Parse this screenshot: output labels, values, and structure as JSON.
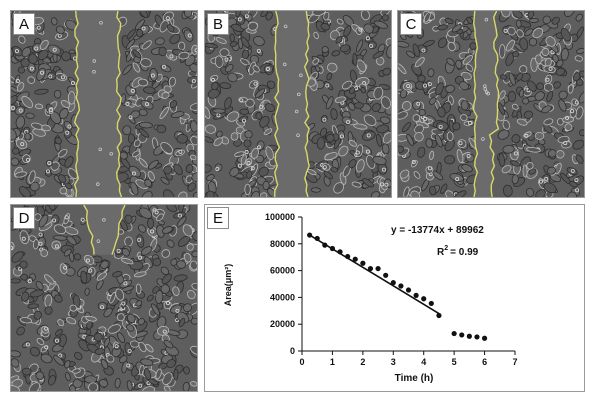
{
  "figure": {
    "panels": [
      {
        "id": "A",
        "label": "A"
      },
      {
        "id": "B",
        "label": "B"
      },
      {
        "id": "C",
        "label": "C"
      },
      {
        "id": "D",
        "label": "D"
      },
      {
        "id": "E",
        "label": "E"
      }
    ],
    "colors": {
      "cell_background": "#5e5e5e",
      "cell_edge_dark": "#2e2e2e",
      "cell_edge_light": "#b8b8b8",
      "wound_gap": "#6b6b6b",
      "wound_outline": "#d6d96a"
    }
  },
  "chart_data": {
    "type": "scatter",
    "title": "",
    "xlabel": "Time (h)",
    "ylabel": "Area(μm²)",
    "xlim": [
      0,
      7
    ],
    "ylim": [
      0,
      100000
    ],
    "x_ticks": [
      "0",
      "1",
      "2",
      "3",
      "4",
      "5",
      "6",
      "7"
    ],
    "y_ticks": [
      "0",
      "20000",
      "40000",
      "60000",
      "80000",
      "100000"
    ],
    "grid": false,
    "series": [
      {
        "points": [
          {
            "x": 0.25,
            "y": 86500
          },
          {
            "x": 0.5,
            "y": 84000
          },
          {
            "x": 0.75,
            "y": 79000
          },
          {
            "x": 1.0,
            "y": 76500
          },
          {
            "x": 1.25,
            "y": 74000
          },
          {
            "x": 1.5,
            "y": 70500
          },
          {
            "x": 1.75,
            "y": 68500
          },
          {
            "x": 2.0,
            "y": 65500
          },
          {
            "x": 2.25,
            "y": 61500
          },
          {
            "x": 2.5,
            "y": 61500
          },
          {
            "x": 2.75,
            "y": 56500
          },
          {
            "x": 3.0,
            "y": 51000
          },
          {
            "x": 3.25,
            "y": 48500
          },
          {
            "x": 3.5,
            "y": 45500
          },
          {
            "x": 3.75,
            "y": 41500
          },
          {
            "x": 4.0,
            "y": 39000
          },
          {
            "x": 4.25,
            "y": 35500
          },
          {
            "x": 4.5,
            "y": 26500
          },
          {
            "x": 5.0,
            "y": 13000
          },
          {
            "x": 5.25,
            "y": 12000
          },
          {
            "x": 5.5,
            "y": 11000
          },
          {
            "x": 5.75,
            "y": 10500
          },
          {
            "x": 6.0,
            "y": 9500
          }
        ]
      }
    ],
    "fit_line": {
      "slope": -13774,
      "intercept": 89962,
      "x_range": [
        0.25,
        4.5
      ]
    },
    "annotations": {
      "equation": "y = -13774x + 89962",
      "r2_label": "R",
      "r2_sup": "2",
      "r2_value": "= 0.99"
    }
  }
}
